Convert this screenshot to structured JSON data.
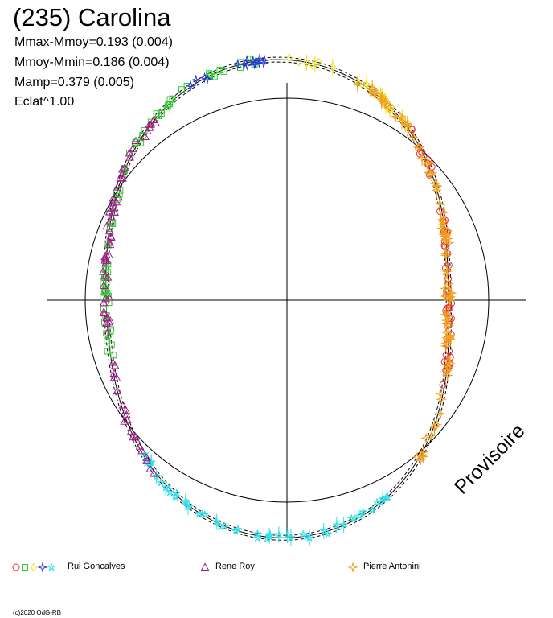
{
  "chart_data": {
    "type": "scatter",
    "title": "(235) Carolina",
    "stats": [
      "Mmax-Mmoy=0.193 (0.004)",
      "Mmoy-Mmin=0.186 (0.004)",
      "Mamp=0.379 (0.005)",
      "Eclat^1.00"
    ],
    "watermark": "Provisoire",
    "copyright": "(c)2020 OdG-RB",
    "legend": [
      {
        "name": "Rui Goncalves",
        "symbols": [
          "circle",
          "square",
          "diamond",
          "star4",
          "star5"
        ],
        "colors": [
          "#e8332d",
          "#2ecc2e",
          "#f0dc1a",
          "#2a3cd0",
          "#35e0e8"
        ]
      },
      {
        "name": "Rene Roy",
        "symbols": [
          "triangle"
        ],
        "colors": [
          "#a0208a"
        ]
      },
      {
        "name": "Pierre Antonini",
        "symbols": [
          "star4"
        ],
        "colors": [
          "#f0a020"
        ]
      }
    ],
    "reference_circle": {
      "radius": 1.0
    },
    "lightcurve_polar": {
      "description_of_shape": "magnitude offsets plotted vs rotational phase",
      "series": [
        {
          "name": "Rui Goncalves",
          "color": "#e8332d",
          "phase_range": [
            0.1,
            0.33
          ]
        },
        {
          "name": "Rui Goncalves",
          "color": "#2ecc2e",
          "phase_range": [
            0.7,
            0.98
          ]
        },
        {
          "name": "Rui Goncalves",
          "color": "#f0dc1a",
          "phase_range": [
            0.0,
            0.1
          ]
        },
        {
          "name": "Rui Goncalves",
          "color": "#2a3cd0",
          "phase_range": [
            0.93,
            0.99
          ]
        },
        {
          "name": "Rui Goncalves",
          "color": "#35e0e8",
          "phase_range": [
            0.42,
            0.62
          ]
        },
        {
          "name": "Rene Roy",
          "color": "#a0208a",
          "phase_range": [
            0.6,
            0.9
          ]
        },
        {
          "name": "Pierre Antonini",
          "color": "#f0a020",
          "phase_range": [
            0.05,
            0.4
          ]
        }
      ]
    }
  }
}
